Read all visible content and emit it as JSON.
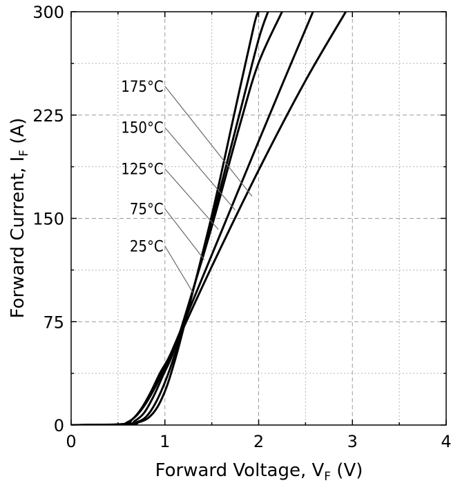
{
  "chart_data": {
    "type": "line",
    "xlabel": {
      "main": "Forward Voltage, V",
      "sub": "F",
      "unit": " (V)"
    },
    "ylabel": {
      "main": "Forward Current, I",
      "sub": "F",
      "unit": " (A)"
    },
    "xlim": [
      0,
      4
    ],
    "ylim": [
      0,
      300
    ],
    "x_ticks": [
      "0",
      "1",
      "2",
      "3",
      "4"
    ],
    "y_ticks": [
      "0",
      "75",
      "150",
      "225",
      "300"
    ],
    "grid": true,
    "series": [
      {
        "name": "25°C",
        "label_y": 130,
        "leader_end": [
          1.3,
          96
        ],
        "points": [
          [
            0,
            0
          ],
          [
            0.5,
            0.5
          ],
          [
            0.6,
            2
          ],
          [
            0.7,
            7
          ],
          [
            0.8,
            16
          ],
          [
            0.9,
            28
          ],
          [
            1.0,
            42
          ],
          [
            1.1,
            56
          ],
          [
            1.5,
            115
          ],
          [
            2.0,
            185
          ],
          [
            2.5,
            250
          ],
          [
            2.93,
            300
          ]
        ]
      },
      {
        "name": "75°C",
        "label_y": 157,
        "leader_end": [
          1.42,
          120
        ],
        "points": [
          [
            0,
            0
          ],
          [
            0.55,
            0.5
          ],
          [
            0.65,
            4
          ],
          [
            0.75,
            12
          ],
          [
            0.85,
            24
          ],
          [
            0.95,
            38
          ],
          [
            1.05,
            50
          ],
          [
            1.2,
            74
          ],
          [
            1.6,
            140
          ],
          [
            2.0,
            206
          ],
          [
            2.3,
            255
          ],
          [
            2.58,
            300
          ]
        ]
      },
      {
        "name": "125°C",
        "label_y": 186,
        "leader_end": [
          1.57,
          142
        ],
        "points": [
          [
            0,
            0
          ],
          [
            0.58,
            0.5
          ],
          [
            0.68,
            3
          ],
          [
            0.78,
            9
          ],
          [
            0.88,
            21
          ],
          [
            0.98,
            36
          ],
          [
            1.08,
            51
          ],
          [
            1.2,
            76
          ],
          [
            1.5,
            144
          ],
          [
            1.8,
            218
          ],
          [
            2.0,
            263
          ],
          [
            2.25,
            300
          ]
        ]
      },
      {
        "name": "150°C",
        "label_y": 216,
        "leader_end": [
          1.75,
          156
        ],
        "points": [
          [
            0,
            0
          ],
          [
            0.6,
            0.5
          ],
          [
            0.7,
            2
          ],
          [
            0.8,
            6
          ],
          [
            0.9,
            16
          ],
          [
            1.0,
            31
          ],
          [
            1.1,
            50
          ],
          [
            1.2,
            73
          ],
          [
            1.5,
            148
          ],
          [
            1.8,
            227
          ],
          [
            2.0,
            280
          ],
          [
            2.1,
            300
          ]
        ]
      },
      {
        "name": "175°C",
        "label_y": 246,
        "leader_end": [
          1.93,
          166
        ],
        "points": [
          [
            0,
            0
          ],
          [
            0.62,
            0.5
          ],
          [
            0.72,
            2
          ],
          [
            0.82,
            5
          ],
          [
            0.92,
            13
          ],
          [
            1.02,
            28
          ],
          [
            1.12,
            50
          ],
          [
            1.22,
            76
          ],
          [
            1.5,
            152
          ],
          [
            1.75,
            229
          ],
          [
            1.95,
            290
          ],
          [
            2.0,
            300
          ]
        ]
      }
    ],
    "label_x": 1.0
  }
}
